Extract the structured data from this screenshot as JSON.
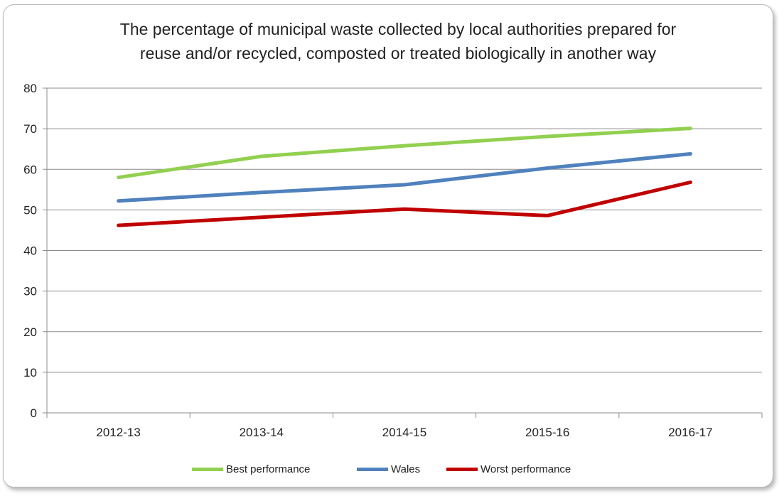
{
  "chart_data": {
    "type": "line",
    "title_lines": [
      "The percentage of municipal waste collected by local authorities prepared for",
      "reuse and/or recycled, composted or treated biologically in another way"
    ],
    "xlabel": "",
    "ylabel": "",
    "categories": [
      "2012-13",
      "2013-14",
      "2014-15",
      "2015-16",
      "2016-17"
    ],
    "y_ticks": [
      "0",
      "10",
      "20",
      "30",
      "40",
      "50",
      "60",
      "70",
      "80"
    ],
    "ylim": [
      0,
      80
    ],
    "grid": "horizontal",
    "legend_position": "bottom",
    "series": [
      {
        "name": "Best performance",
        "color": "#92d050",
        "values": [
          58,
          63.2,
          65.8,
          68.1,
          70.1
        ]
      },
      {
        "name": "Wales",
        "color": "#4f81bd",
        "values": [
          52.2,
          54.3,
          56.2,
          60.3,
          63.8
        ]
      },
      {
        "name": "Worst performance",
        "color": "#c00000",
        "values": [
          46.2,
          48.2,
          50.2,
          48.6,
          56.8
        ]
      }
    ]
  }
}
